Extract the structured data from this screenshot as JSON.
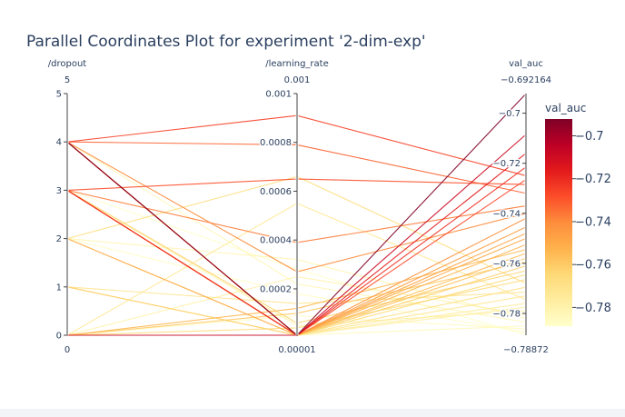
{
  "chart_data": {
    "type": "parallel_coordinates",
    "title": "Parallel Coordinates Plot for experiment '2-dim-exp'",
    "colorbar": {
      "title": "val_auc",
      "tick_labels": [
        "−0.7",
        "−0.72",
        "−0.74",
        "−0.76",
        "−0.78"
      ],
      "tick_values": [
        -0.7,
        -0.72,
        -0.74,
        -0.76,
        -0.78
      ],
      "range": [
        -0.78872,
        -0.692164
      ],
      "colorscale": [
        "#ffffcc",
        "#ffeda0",
        "#fed976",
        "#feb24c",
        "#fd8d3c",
        "#fc4e2a",
        "#e31a1c",
        "#bd0026",
        "#800026"
      ]
    },
    "axes": [
      {
        "label": "/dropout",
        "range": [
          0,
          5
        ],
        "range_labels": {
          "max": "5",
          "min": "0"
        },
        "ticks": [
          {
            "value": 5,
            "label": "5"
          },
          {
            "value": 4,
            "label": "4"
          },
          {
            "value": 3,
            "label": "3"
          },
          {
            "value": 2,
            "label": "2"
          },
          {
            "value": 1,
            "label": "1"
          },
          {
            "value": 0,
            "label": "0"
          }
        ]
      },
      {
        "label": "/learning_rate",
        "range": [
          1e-05,
          0.001
        ],
        "range_labels": {
          "max": "0.001",
          "min": "0.00001"
        },
        "ticks": [
          {
            "value": 0.001,
            "label": "0.001"
          },
          {
            "value": 0.0008,
            "label": "0.0008"
          },
          {
            "value": 0.0006,
            "label": "0.0006"
          },
          {
            "value": 0.0004,
            "label": "0.0004"
          },
          {
            "value": 0.0002,
            "label": "0.0002"
          }
        ]
      },
      {
        "label": "val_auc",
        "range": [
          -0.78872,
          -0.692164
        ],
        "range_labels": {
          "max": "−0.692164",
          "min": "−0.78872"
        },
        "ticks": [
          {
            "value": -0.7,
            "label": "−0.7"
          },
          {
            "value": -0.72,
            "label": "−0.72"
          },
          {
            "value": -0.74,
            "label": "−0.74"
          },
          {
            "value": -0.76,
            "label": "−0.76"
          },
          {
            "value": -0.78,
            "label": "−0.78"
          }
        ]
      }
    ],
    "lines": [
      {
        "dropout": 4,
        "learning_rate": 1e-05,
        "val_auc": -0.6922
      },
      {
        "dropout": 0,
        "learning_rate": 1e-05,
        "val_auc": -0.7085
      },
      {
        "dropout": 4,
        "learning_rate": 1e-05,
        "val_auc": -0.716
      },
      {
        "dropout": 3,
        "learning_rate": 1e-05,
        "val_auc": -0.7215
      },
      {
        "dropout": 3,
        "learning_rate": 1e-05,
        "val_auc": -0.7265
      },
      {
        "dropout": 4,
        "learning_rate": 0.00091,
        "val_auc": -0.725
      },
      {
        "dropout": 3,
        "learning_rate": 0.00065,
        "val_auc": -0.7285
      },
      {
        "dropout": 4,
        "learning_rate": 0.00079,
        "val_auc": -0.732
      },
      {
        "dropout": 3,
        "learning_rate": 0.00039,
        "val_auc": -0.737
      },
      {
        "dropout": 4,
        "learning_rate": 0.00027,
        "val_auc": -0.74
      },
      {
        "dropout": 3,
        "learning_rate": 1e-05,
        "val_auc": -0.742
      },
      {
        "dropout": 4,
        "learning_rate": 1e-05,
        "val_auc": -0.7455
      },
      {
        "dropout": 3,
        "learning_rate": 1e-05,
        "val_auc": -0.748
      },
      {
        "dropout": 2,
        "learning_rate": 1e-05,
        "val_auc": -0.75
      },
      {
        "dropout": 4,
        "learning_rate": 1e-05,
        "val_auc": -0.7525
      },
      {
        "dropout": 0,
        "learning_rate": 0.00012,
        "val_auc": -0.7545
      },
      {
        "dropout": 3,
        "learning_rate": 1e-05,
        "val_auc": -0.756
      },
      {
        "dropout": 4,
        "learning_rate": 1e-05,
        "val_auc": -0.758
      },
      {
        "dropout": 0,
        "learning_rate": 0.0001,
        "val_auc": -0.7595
      },
      {
        "dropout": 1,
        "learning_rate": 1e-05,
        "val_auc": -0.761
      },
      {
        "dropout": 3,
        "learning_rate": 6e-05,
        "val_auc": -0.763
      },
      {
        "dropout": 4,
        "learning_rate": 1e-05,
        "val_auc": -0.7645
      },
      {
        "dropout": 0,
        "learning_rate": 4e-05,
        "val_auc": -0.7665
      },
      {
        "dropout": 2,
        "learning_rate": 0.00066,
        "val_auc": -0.768
      },
      {
        "dropout": 3,
        "learning_rate": 1e-05,
        "val_auc": -0.7695
      },
      {
        "dropout": 1,
        "learning_rate": 0.00014,
        "val_auc": -0.7715
      },
      {
        "dropout": 4,
        "learning_rate": 1e-05,
        "val_auc": -0.773
      },
      {
        "dropout": 0,
        "learning_rate": 0.00055,
        "val_auc": -0.7745
      },
      {
        "dropout": 2,
        "learning_rate": 1e-05,
        "val_auc": -0.776
      },
      {
        "dropout": 1,
        "learning_rate": 1e-05,
        "val_auc": -0.7775
      },
      {
        "dropout": 3,
        "learning_rate": 5e-05,
        "val_auc": -0.779
      },
      {
        "dropout": 0,
        "learning_rate": 0.00025,
        "val_auc": -0.7805
      },
      {
        "dropout": 2,
        "learning_rate": 0.00032,
        "val_auc": -0.782
      },
      {
        "dropout": 4,
        "learning_rate": 0.00022,
        "val_auc": -0.7835
      },
      {
        "dropout": 1,
        "learning_rate": 1e-05,
        "val_auc": -0.785
      },
      {
        "dropout": 0,
        "learning_rate": 9e-05,
        "val_auc": -0.7862
      },
      {
        "dropout": 2,
        "learning_rate": 0.00018,
        "val_auc": -0.7875
      },
      {
        "dropout": 3,
        "learning_rate": 0.00028,
        "val_auc": -0.7885
      }
    ]
  }
}
